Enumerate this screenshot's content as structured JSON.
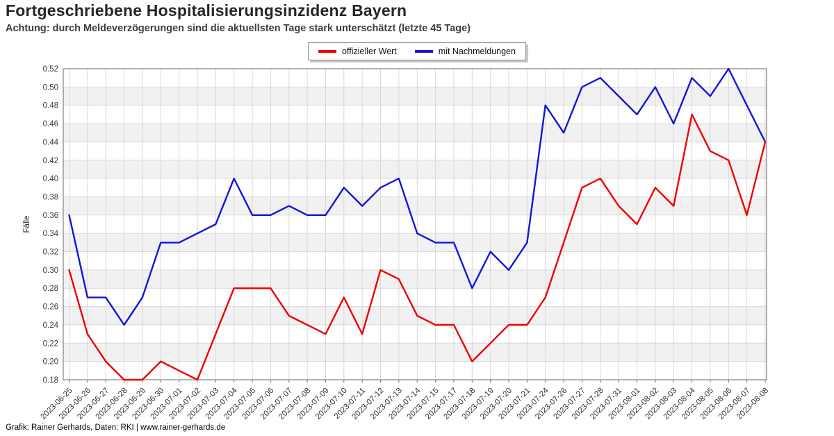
{
  "title": "Fortgeschriebene Hospitalisierungsinzidenz Bayern",
  "subtitle": "Achtung: durch Meldeverzögerungen sind die aktuellsten Tage stark unterschätzt (letzte 45 Tage)",
  "footer": "Grafik: Rainer Gerhards, Daten: RKI | www.rainer-gerhards.de",
  "legend": {
    "items": [
      {
        "label": "offizieller Wert",
        "color": "#ee0000"
      },
      {
        "label": "mit Nachmeldungen",
        "color": "#1414dd"
      }
    ]
  },
  "chart_data": {
    "type": "line",
    "title": "Fortgeschriebene Hospitalisierungsinzidenz Bayern",
    "xlabel": "",
    "ylabel": "Fälle",
    "ylim": [
      0.18,
      0.52
    ],
    "ytick_step": 0.02,
    "grid": true,
    "legend_position": "top-center",
    "band_color": "#f1f1f1",
    "grid_color": "#d9d9d9",
    "border_color": "#808080",
    "categories": [
      "2023-06-25",
      "2023-06-26",
      "2023-06-27",
      "2023-06-28",
      "2023-06-29",
      "2023-06-30",
      "2023-07-01",
      "2023-07-02",
      "2023-07-03",
      "2023-07-04",
      "2023-07-05",
      "2023-07-06",
      "2023-07-07",
      "2023-07-08",
      "2023-07-09",
      "2023-07-10",
      "2023-07-11",
      "2023-07-12",
      "2023-07-13",
      "2023-07-14",
      "2023-07-15",
      "2023-07-17",
      "2023-07-18",
      "2023-07-19",
      "2023-07-20",
      "2023-07-21",
      "2023-07-24",
      "2023-07-26",
      "2023-07-27",
      "2023-07-28",
      "2023-07-31",
      "2023-08-01",
      "2023-08-02",
      "2023-08-03",
      "2023-08-04",
      "2023-08-05",
      "2023-08-06",
      "2023-08-07",
      "2023-08-08"
    ],
    "series": [
      {
        "name": "offizieller Wert",
        "color": "#ee0000",
        "values": [
          0.3,
          0.23,
          0.2,
          0.18,
          0.18,
          0.2,
          0.19,
          0.18,
          0.23,
          0.28,
          0.28,
          0.28,
          0.25,
          0.24,
          0.23,
          0.27,
          0.23,
          0.3,
          0.29,
          0.25,
          0.24,
          0.24,
          0.2,
          0.22,
          0.24,
          0.24,
          0.27,
          0.33,
          0.39,
          0.4,
          0.37,
          0.35,
          0.39,
          0.37,
          0.47,
          0.43,
          0.42,
          0.36,
          0.44
        ]
      },
      {
        "name": "mit Nachmeldungen",
        "color": "#1414dd",
        "values": [
          0.36,
          0.27,
          0.27,
          0.24,
          0.27,
          0.33,
          0.33,
          0.34,
          0.35,
          0.4,
          0.36,
          0.36,
          0.37,
          0.36,
          0.36,
          0.39,
          0.37,
          0.39,
          0.4,
          0.34,
          0.33,
          0.33,
          0.28,
          0.32,
          0.3,
          0.33,
          0.48,
          0.45,
          0.5,
          0.51,
          0.49,
          0.47,
          0.5,
          0.46,
          0.51,
          0.49,
          0.52,
          0.48,
          0.44
        ]
      }
    ]
  }
}
